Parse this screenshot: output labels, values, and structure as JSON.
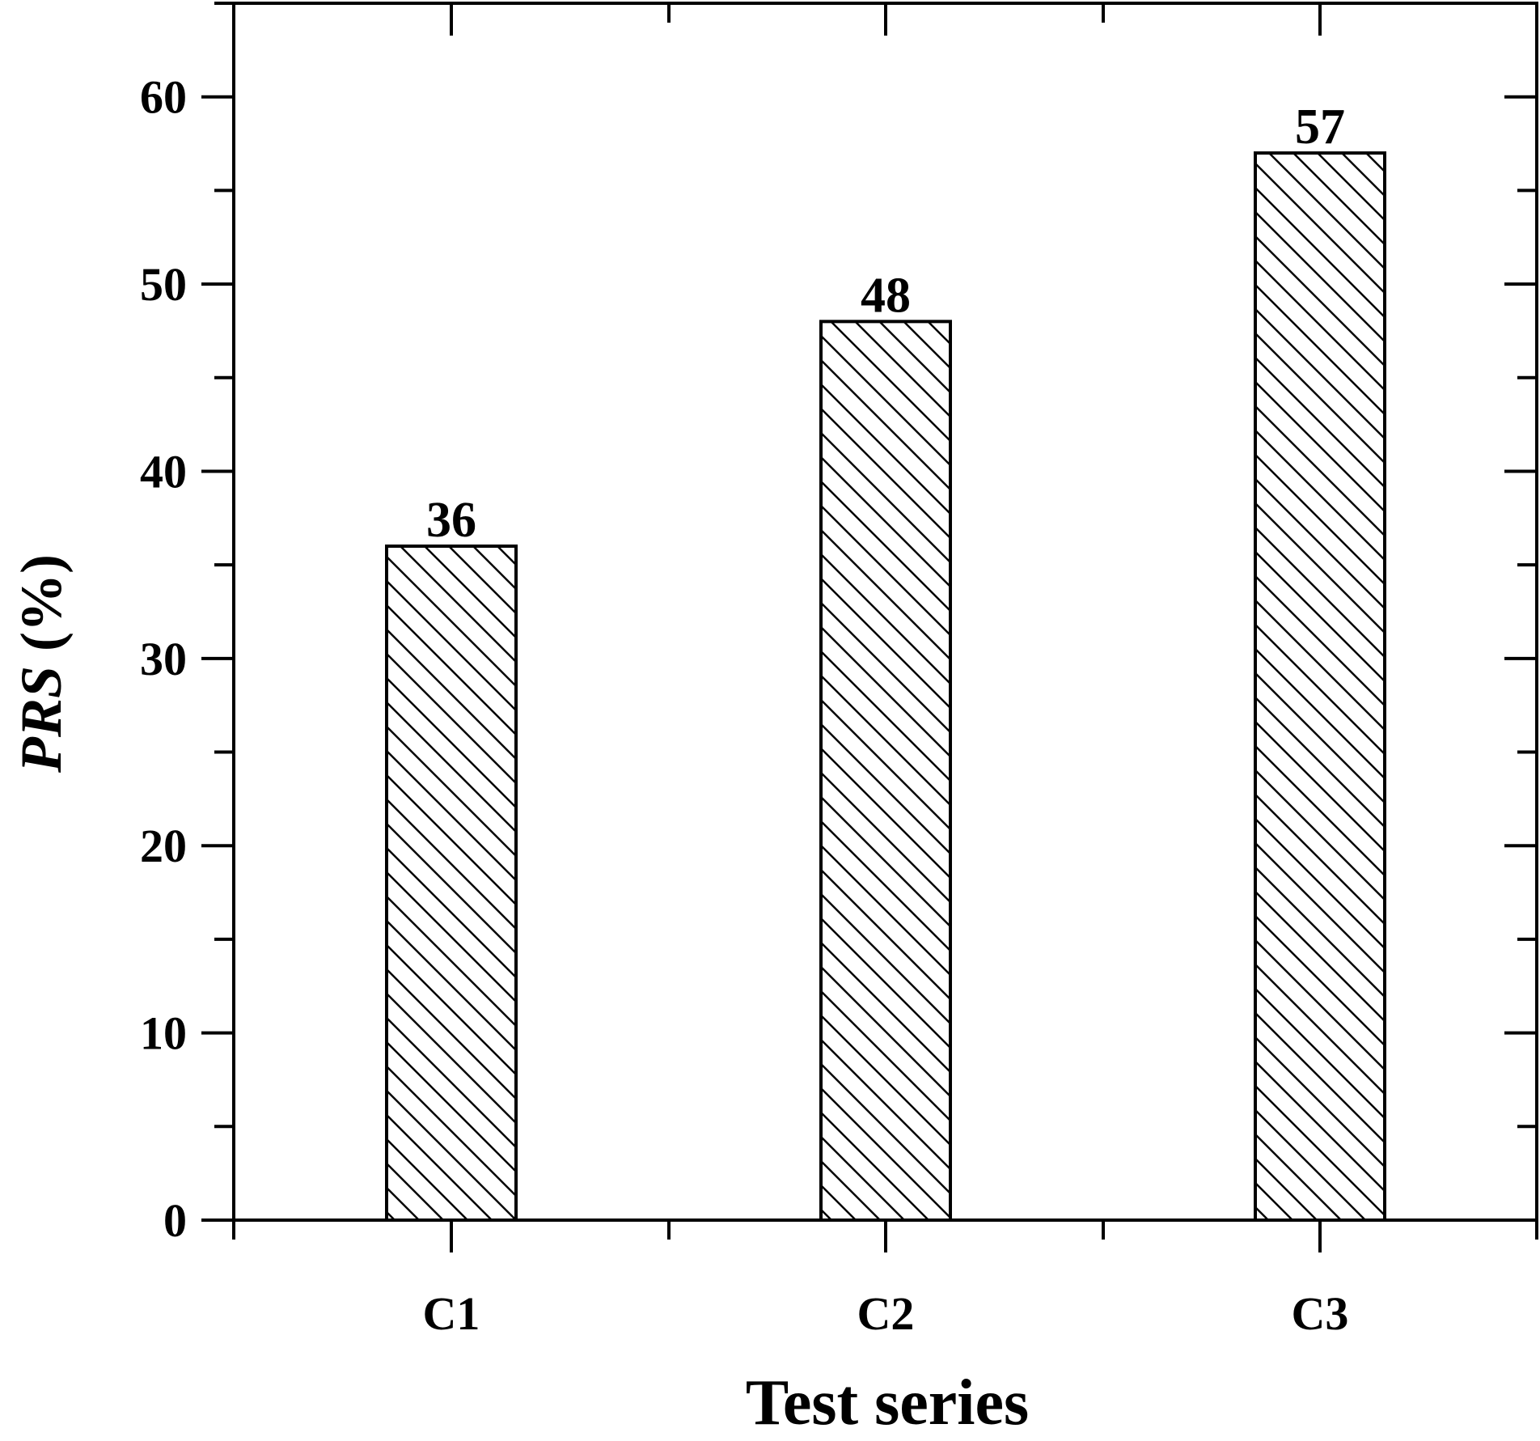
{
  "chart_data": {
    "type": "bar",
    "categories": [
      "C1",
      "C2",
      "C3"
    ],
    "values": [
      36,
      48,
      57
    ],
    "value_labels": [
      "36",
      "48",
      "57"
    ],
    "xlabel": "Test series",
    "ylabel": {
      "italic": "PRS",
      "rest": " (%)"
    },
    "ylim": [
      0,
      65
    ],
    "yticks": [
      0,
      10,
      20,
      30,
      40,
      50,
      60
    ],
    "ytick_labels": [
      "0",
      "10",
      "20",
      "30",
      "40",
      "50",
      "60"
    ],
    "grid": false,
    "bar_fill": "hatched",
    "colors": {
      "bar_stroke": "#000000",
      "hatch": "#000000",
      "axes": "#000000"
    }
  }
}
